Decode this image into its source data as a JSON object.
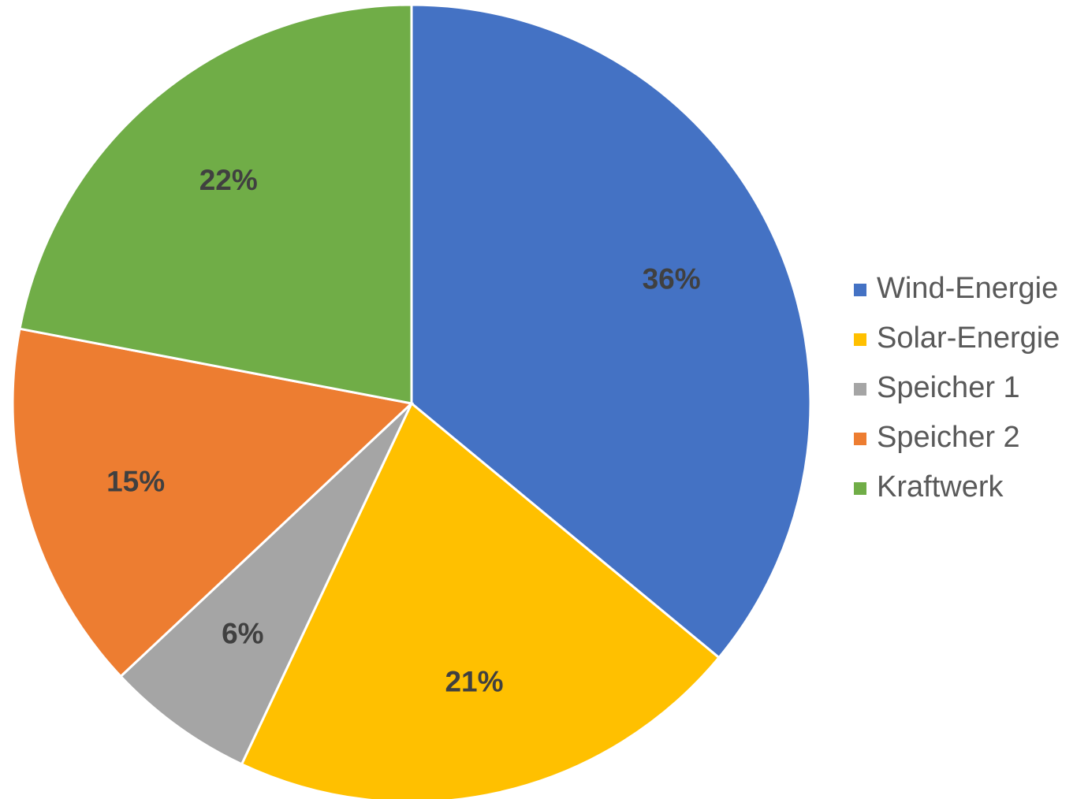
{
  "chart_data": {
    "type": "pie",
    "categories": [
      "Wind-Energie",
      "Solar-Energie",
      "Speicher 1",
      "Speicher 2",
      "Kraftwerk"
    ],
    "values": [
      36,
      21,
      6,
      15,
      22
    ],
    "value_labels": [
      "36%",
      "21%",
      "6%",
      "15%",
      "22%"
    ],
    "colors": [
      "#4472c4",
      "#ffc000",
      "#a5a5a5",
      "#ed7d31",
      "#70ad47"
    ],
    "legend": "right"
  }
}
